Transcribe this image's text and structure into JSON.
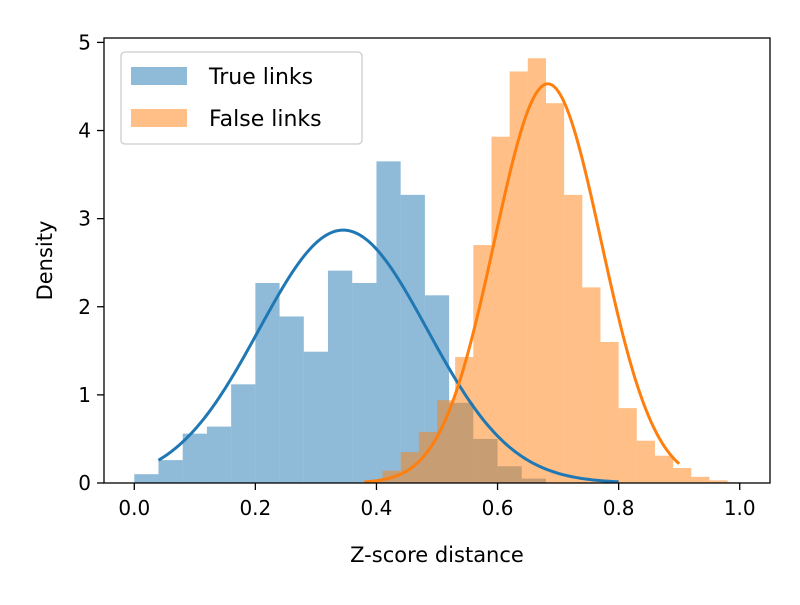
{
  "chart_data": {
    "type": "histogram",
    "xlabel": "Z-score distance",
    "ylabel": "Density",
    "xlim": [
      -0.05,
      1.05
    ],
    "ylim": [
      0,
      5.05
    ],
    "xticks": [
      0.0,
      0.2,
      0.4,
      0.6,
      0.8,
      1.0
    ],
    "xtick_labels": [
      "0.0",
      "0.2",
      "0.4",
      "0.6",
      "0.8",
      "1.0"
    ],
    "yticks": [
      0,
      1,
      2,
      3,
      4,
      5
    ],
    "ytick_labels": [
      "0",
      "1",
      "2",
      "3",
      "4",
      "5"
    ],
    "legend_position": "top-left",
    "series": [
      {
        "name": "True links",
        "bar_color": "#1f77b4",
        "bar_alpha": 0.5,
        "line_color": "#1f77b4",
        "bin_edges": [
          0.0,
          0.04,
          0.08,
          0.12,
          0.16,
          0.2,
          0.24,
          0.28,
          0.32,
          0.36,
          0.4,
          0.44,
          0.48,
          0.52,
          0.56,
          0.6,
          0.64,
          0.68
        ],
        "densities": [
          0.1,
          0.26,
          0.56,
          0.64,
          1.12,
          2.27,
          1.89,
          1.49,
          2.41,
          2.27,
          3.65,
          3.27,
          2.13,
          0.91,
          0.5,
          0.19,
          0.05
        ],
        "fit_mean": 0.345,
        "fit_peak": 2.87,
        "fit_range": [
          0.04,
          0.8
        ]
      },
      {
        "name": "False links",
        "bar_color": "#ff7f0e",
        "bar_alpha": 0.5,
        "line_color": "#ff7f0e",
        "bin_edges": [
          0.38,
          0.41,
          0.44,
          0.47,
          0.5,
          0.53,
          0.56,
          0.59,
          0.62,
          0.65,
          0.68,
          0.71,
          0.74,
          0.77,
          0.8,
          0.83,
          0.86,
          0.89,
          0.92,
          0.95,
          0.98,
          1.0
        ],
        "densities": [
          0.02,
          0.14,
          0.35,
          0.58,
          0.94,
          1.43,
          2.7,
          3.93,
          4.67,
          4.82,
          4.31,
          3.27,
          2.22,
          1.6,
          0.85,
          0.48,
          0.31,
          0.17,
          0.07,
          0.03,
          0.01
        ],
        "fit_mean": 0.683,
        "fit_peak": 4.53,
        "fit_range": [
          0.38,
          0.9
        ]
      }
    ]
  }
}
